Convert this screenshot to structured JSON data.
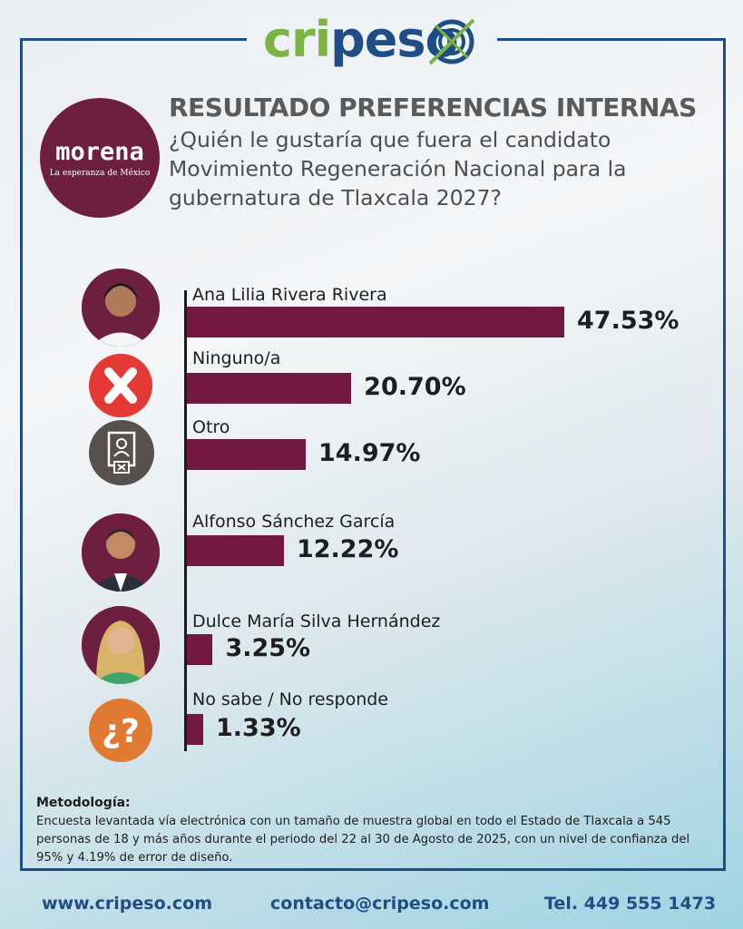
{
  "brand": {
    "logo_part1": "cri",
    "logo_part2": "peso",
    "target_icon": "target-icon",
    "colors": {
      "green": "#7cb342",
      "blue": "#1f4e87"
    }
  },
  "party": {
    "name": "morena",
    "slogan": "La esperanza de México",
    "color": "#6e1f3f"
  },
  "header": {
    "title": "RESULTADO PREFERENCIAS INTERNAS",
    "question": "¿Quién le gustaría que fuera el candidato Movimiento Regeneración Nacional para la gubernatura de Tlaxcala 2027?"
  },
  "chart_data": {
    "type": "bar",
    "orientation": "horizontal",
    "bar_color": "#721843",
    "categories": [
      "Ana Lilia Rivera Rivera",
      "Ninguno/a",
      "Otro",
      "Alfonso Sánchez García",
      "Dulce María Silva Hernández",
      "No sabe / No responde"
    ],
    "values": [
      47.53,
      20.7,
      14.97,
      12.22,
      3.25,
      1.33
    ],
    "value_labels": [
      "47.53%",
      "20.70%",
      "14.97%",
      "12.22%",
      "3.25%",
      "1.33%"
    ],
    "icons": [
      "person-photo-icon",
      "x-icon",
      "ballot-icon",
      "person-photo-icon",
      "person-photo-icon",
      "question-icon"
    ]
  },
  "methodology": {
    "title": "Metodología:",
    "text": "Encuesta levantada vía electrónica con un tamaño de muestra global en todo el Estado de Tlaxcala a 545 personas de 18 y más años durante el periodo del 22 al 30 de Agosto de 2025, con un nivel de confianza del 95% y 4.19% de error de diseño."
  },
  "footer": {
    "website": "www.cripeso.com",
    "email": "contacto@cripeso.com",
    "phone": "Tel. 449 555 1473"
  }
}
